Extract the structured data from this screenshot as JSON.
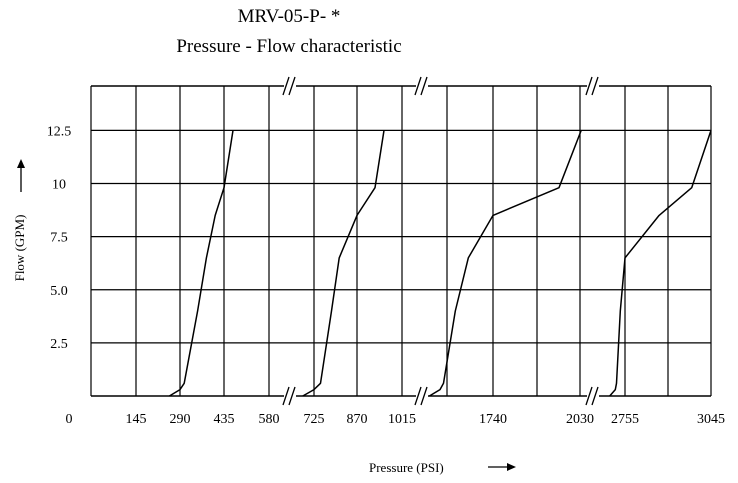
{
  "chart_data": {
    "type": "line",
    "title": "MRV-05-P- *",
    "subtitle": "Pressure - Flow characteristic",
    "xlabel": "Pressure (PSI)",
    "ylabel": "Flow (GPM)",
    "x_axis_broken": true,
    "y_ticks": [
      "12.5",
      "10",
      "7.5",
      "5.0",
      "2.5"
    ],
    "x_ticks": [
      "0",
      "145",
      "290",
      "435",
      "580",
      "725",
      "870",
      "1015",
      "1740",
      "2030",
      "2755",
      "3045"
    ],
    "ylim": [
      0,
      12.5
    ],
    "grid": true,
    "series": [
      {
        "x": [
          255,
          290,
          304,
          348,
          377,
          406,
          435,
          464
        ],
        "y": [
          0,
          0.3,
          0.6,
          4.0,
          6.5,
          8.5,
          9.8,
          12.5
        ]
      },
      {
        "x": [
          690,
          725,
          747,
          784,
          810,
          870,
          928,
          957
        ],
        "y": [
          0,
          0.3,
          0.6,
          4.0,
          6.5,
          8.5,
          9.8,
          12.5
        ]
      },
      {
        "x": [
          1200,
          1290,
          1320,
          1420,
          1530,
          1740,
          1960,
          2050
        ],
        "y": [
          0,
          0.3,
          0.6,
          4.0,
          6.5,
          8.5,
          9.8,
          12.5
        ]
      },
      {
        "x": [
          2510,
          2600,
          2620,
          2680,
          2755,
          2870,
          2980,
          3045
        ],
        "y": [
          0,
          0.3,
          0.6,
          4.0,
          6.5,
          8.5,
          9.8,
          12.5
        ]
      }
    ]
  }
}
